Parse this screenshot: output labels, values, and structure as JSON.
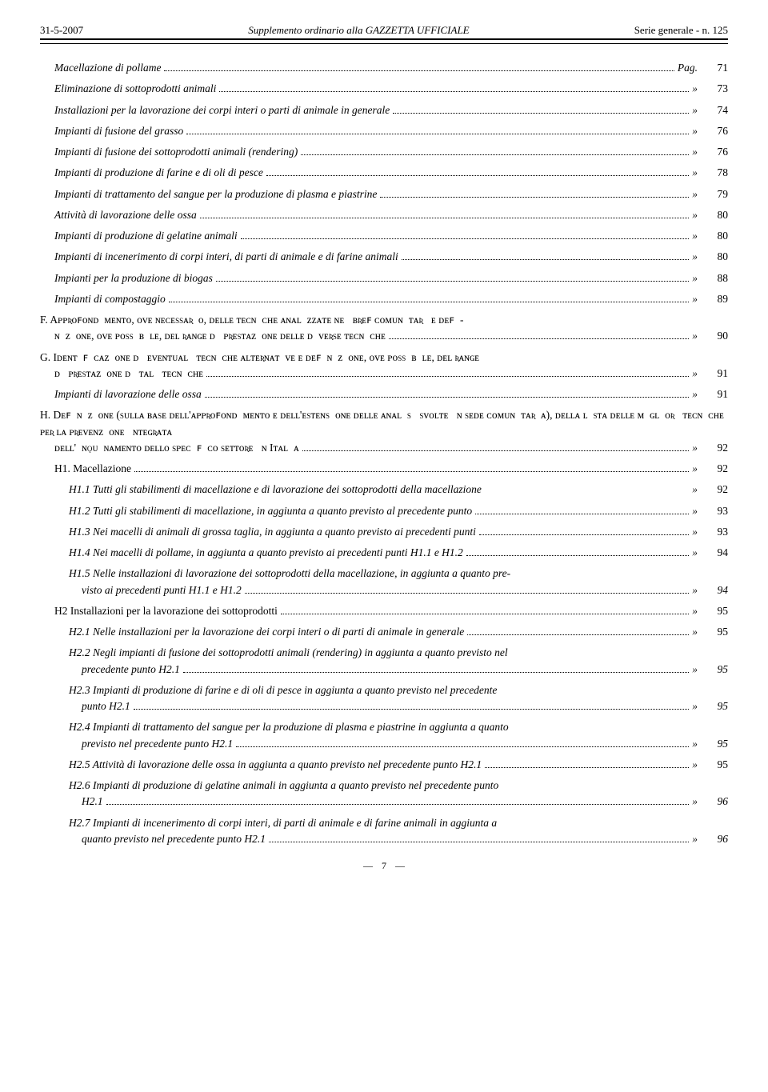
{
  "header": {
    "date": "31-5-2007",
    "center": "Supplemento ordinario alla GAZZETTA UFFICIALE",
    "right": "Serie generale - n. 125"
  },
  "toc": [
    {
      "indent": 0,
      "style": "italic",
      "label": "Macellazione di pollame",
      "sym": "Pag.",
      "page": "71"
    },
    {
      "indent": 0,
      "style": "italic",
      "label": "Eliminazione di sottoprodotti animali",
      "sym": "»",
      "page": "73"
    },
    {
      "indent": 0,
      "style": "italic",
      "label": "Installazioni per la lavorazione dei corpi interi o parti di animale in generale",
      "sym": "»",
      "page": "74"
    },
    {
      "indent": 0,
      "style": "italic",
      "label": "Impianti di fusione del grasso",
      "sym": "»",
      "page": "76"
    },
    {
      "indent": 0,
      "style": "italic",
      "label": "Impianti di fusione dei sottoprodotti animali (rendering)",
      "sym": "»",
      "page": "76"
    },
    {
      "indent": 0,
      "style": "italic",
      "label": "Impianti di produzione di farine e di oli di pesce",
      "sym": "»",
      "page": "78"
    },
    {
      "indent": 0,
      "style": "italic",
      "label": "Impianti di trattamento del sangue per la produzione di plasma e piastrine",
      "sym": "»",
      "page": "79"
    },
    {
      "indent": 0,
      "style": "italic",
      "label": "Attività di lavorazione delle ossa",
      "sym": "»",
      "page": "80"
    },
    {
      "indent": 0,
      "style": "italic",
      "label": "Impianti di produzione di gelatine animali",
      "sym": "»",
      "page": "80"
    },
    {
      "indent": 0,
      "style": "italic",
      "label": "Impianti di incenerimento di corpi interi, di parti di animale e di farine animali",
      "sym": "»",
      "page": "80"
    },
    {
      "indent": 0,
      "style": "italic",
      "label": "Impianti per la produzione di biogas",
      "sym": "»",
      "page": "88"
    },
    {
      "indent": 0,
      "style": "italic",
      "label": "Impianti di compostaggio",
      "sym": "»",
      "page": "89"
    }
  ],
  "sectionF": {
    "lines": "F. Aᴘᴘʀᴏꜰᴏɴᴅɪᴍᴇɴᴛᴏ, ᴏᴠᴇ ɴᴇᴄᴇssᴀʀɪᴏ, ᴅᴇʟʟᴇ ᴛᴇᴄɴɪᴄʜᴇ ᴀɴᴀʟɪᴢᴢᴀᴛᴇ ɴᴇɪ ʙʀᴇꜰ ᴄᴏᴍᴜɴɪᴛᴀʀɪ ᴇ ᴅᴇꜰɪ-",
    "last": "ɴɪᴢɪᴏɴᴇ, ᴏᴠᴇ ᴘᴏssɪʙɪʟᴇ, ᴅᴇʟ ʀᴀɴɢᴇ ᴅɪ ᴘʀᴇsᴛᴀᴢɪᴏɴᴇ ᴅᴇʟʟᴇ ᴅɪᴠᴇʀsᴇ ᴛᴇᴄɴɪᴄʜᴇ",
    "sym": "»",
    "page": "90"
  },
  "sectionG": {
    "lines": "G. Iᴅᴇɴᴛɪꜰɪᴄᴀᴢɪᴏɴᴇ ᴅɪ ᴇᴠᴇɴᴛᴜᴀʟɪ ᴛᴇᴄɴɪᴄʜᴇ ᴀʟᴛᴇʀɴᴀᴛɪᴠᴇ ᴇ ᴅᴇꜰɪɴɪᴢɪᴏɴᴇ, ᴏᴠᴇ ᴘᴏssɪʙɪʟᴇ, ᴅᴇʟ ʀᴀɴɢᴇ",
    "last": "ᴅɪ ᴘʀᴇsᴛᴀᴢɪᴏɴᴇ ᴅɪ ᴛᴀʟɪ ᴛᴇᴄɴɪᴄʜᴇ",
    "sym": "»",
    "page": "91"
  },
  "toc_g": [
    {
      "indent": 0,
      "style": "italic",
      "label": "Impianti di lavorazione delle ossa",
      "sym": "»",
      "page": "91"
    }
  ],
  "sectionH": {
    "lines": "H. Dᴇꜰɪɴɪᴢɪᴏɴᴇ (sᴜʟʟᴀ ʙᴀsᴇ ᴅᴇʟʟ'ᴀᴘᴘʀᴏꜰᴏɴᴅɪᴍᴇɴᴛᴏ ᴇ ᴅᴇʟʟ'ᴇsᴛᴇɴsɪᴏɴᴇ ᴅᴇʟʟᴇ ᴀɴᴀʟɪsɪ sᴠᴏʟᴛᴇ ɪɴ sᴇᴅᴇ ᴄᴏᴍᴜɴɪᴛᴀʀɪᴀ), ᴅᴇʟʟᴀ ʟɪsᴛᴀ ᴅᴇʟʟᴇ ᴍɪɢʟɪᴏʀɪ ᴛᴇᴄɴɪᴄʜᴇ ᴘᴇʀ ʟᴀ ᴘʀᴇᴠᴇɴᴢɪᴏɴᴇ ɪɴᴛᴇɢʀᴀᴛᴀ",
    "last": "ᴅᴇʟʟ'ɪɴǫᴜɪɴᴀᴍᴇɴᴛᴏ ᴅᴇʟʟᴏ sᴘᴇᴄɪꜰɪᴄᴏ sᴇᴛᴛᴏʀᴇ ɪɴ Iᴛᴀʟɪᴀ",
    "sym": "»",
    "page": "92"
  },
  "toc_h": [
    {
      "indent": 0,
      "style": "normal",
      "label": "H1. Macellazione",
      "sym": "»",
      "page": "92"
    },
    {
      "indent": 1,
      "style": "italic",
      "label": "H1.1 Tutti gli stabilimenti di macellazione e di lavorazione dei sottoprodotti della macellazione",
      "nodots": true,
      "sym": "»",
      "page": "92"
    },
    {
      "indent": 1,
      "style": "italic",
      "label": "H1.2 Tutti gli stabilimenti di macellazione, in aggiunta a quanto previsto al precedente punto",
      "sym": "»",
      "page": "93"
    },
    {
      "indent": 1,
      "style": "italic",
      "label": "H1.3 Nei macelli di animali di grossa taglia, in aggiunta a quanto previsto ai precedenti punti",
      "sym": "»",
      "page": "93"
    },
    {
      "indent": 1,
      "style": "italic",
      "label": "H1.4 Nei macelli di pollame, in aggiunta a quanto previsto ai precedenti punti H1.1 e H1.2",
      "sym": "»",
      "page": "94"
    }
  ],
  "h1_5": {
    "lines": "H1.5 Nelle installazioni di lavorazione dei sottoprodotti della macellazione, in aggiunta a quanto pre-",
    "last": "visto ai precedenti punti H1.1 e H1.2",
    "sym": "»",
    "page": "94"
  },
  "toc_h2": [
    {
      "indent": 0,
      "style": "normal",
      "label": "H2 Installazioni per la lavorazione dei sottoprodotti",
      "sym": "»",
      "page": "95"
    },
    {
      "indent": 1,
      "style": "italic",
      "label": "H2.1 Nelle installazioni per la lavorazione dei corpi interi o di parti di animale in generale",
      "sym": "»",
      "page": "95"
    }
  ],
  "h2_2": {
    "lines": "H2.2 Negli impianti di fusione dei sottoprodotti animali (rendering) in aggiunta a quanto previsto nel",
    "last": "precedente punto H2.1",
    "sym": "»",
    "page": "95"
  },
  "h2_3": {
    "lines": "H2.3 Impianti di produzione di farine e di oli di pesce in aggiunta a quanto previsto nel precedente",
    "last": "punto H2.1",
    "sym": "»",
    "page": "95"
  },
  "h2_4": {
    "lines": "H2.4 Impianti di trattamento del sangue per la produzione di plasma e piastrine in aggiunta a quanto",
    "last": "previsto nel precedente punto H2.1",
    "sym": "»",
    "page": "95"
  },
  "toc_h2b": [
    {
      "indent": 1,
      "style": "italic",
      "label": "H2.5 Attività di lavorazione delle ossa in aggiunta a quanto previsto nel precedente punto H2.1",
      "sym": "»",
      "page": "95"
    }
  ],
  "h2_6": {
    "lines": "H2.6 Impianti di produzione di gelatine animali in aggiunta a quanto previsto nel precedente punto",
    "last": "H2.1",
    "sym": "»",
    "page": "96"
  },
  "h2_7": {
    "lines": "H2.7 Impianti di incenerimento di corpi interi, di parti di animale e di farine animali in aggiunta a",
    "last": "quanto previsto nel precedente punto H2.1",
    "sym": "»",
    "page": "96"
  },
  "footer": {
    "page": "7"
  }
}
